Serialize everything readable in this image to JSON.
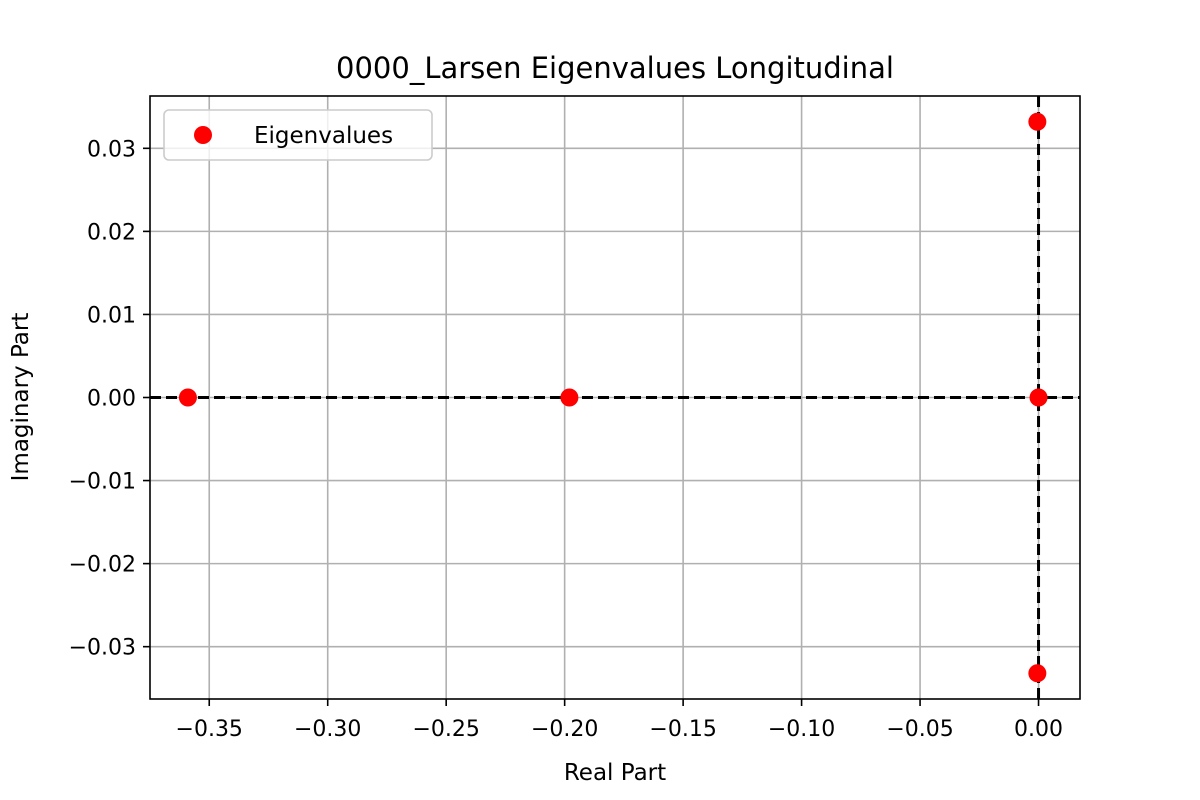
{
  "chart_data": {
    "type": "scatter",
    "title": "0000_Larsen Eigenvalues Longitudinal",
    "xlabel": "Real Part",
    "ylabel": "Imaginary Part",
    "xlim": [
      -0.375,
      0.0175
    ],
    "ylim": [
      -0.0363,
      0.0363
    ],
    "x_ticks": [
      -0.35,
      -0.3,
      -0.25,
      -0.2,
      -0.15,
      -0.1,
      -0.05,
      0.0
    ],
    "x_tick_labels": [
      "−0.35",
      "−0.30",
      "−0.25",
      "−0.20",
      "−0.15",
      "−0.10",
      "−0.05",
      "0.00"
    ],
    "y_ticks": [
      -0.03,
      -0.02,
      -0.01,
      0.0,
      0.01,
      0.02,
      0.03
    ],
    "y_tick_labels": [
      "−0.03",
      "−0.02",
      "−0.01",
      "0.00",
      "0.01",
      "0.02",
      "0.03"
    ],
    "grid": true,
    "legend_position": "top-left",
    "series": [
      {
        "name": "Eigenvalues",
        "color": "#ff0000",
        "points": [
          {
            "x": -0.359,
            "y": 0.0
          },
          {
            "x": -0.198,
            "y": 0.0
          },
          {
            "x": 0.0,
            "y": 0.0
          },
          {
            "x": -0.0005,
            "y": 0.0332
          },
          {
            "x": -0.0005,
            "y": -0.0332
          }
        ]
      }
    ],
    "reference_lines": [
      {
        "orientation": "horizontal",
        "value": 0.0,
        "style": "dashed",
        "color": "#000000"
      },
      {
        "orientation": "vertical",
        "value": 0.0,
        "style": "dashed",
        "color": "#000000"
      }
    ]
  }
}
